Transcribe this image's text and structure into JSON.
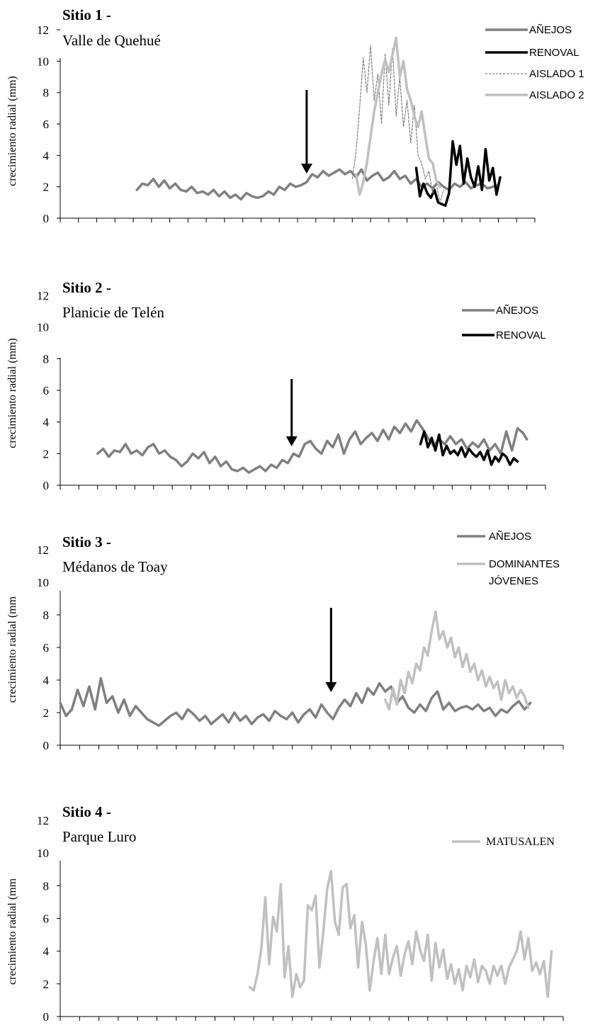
{
  "colors": {
    "anejos": "#808080",
    "renoval": "#000000",
    "aislado1": "#808080",
    "light": "#c0c0c0"
  },
  "chart_data": [
    {
      "type": "line",
      "title": "Sitio 1 -",
      "subtitle": "Valle de Quehué",
      "ylabel": "crecimiento radial (mm)",
      "ylim": [
        0,
        12
      ],
      "yticks": [
        0,
        2,
        4,
        6,
        8,
        10,
        12
      ],
      "xlim": [
        1750,
        2010
      ],
      "arrow_year": 1885,
      "series": [
        {
          "name": "AÑEJOS",
          "color": "#808080",
          "style": "solid",
          "x": [
            1792,
            1795,
            1798,
            1801,
            1804,
            1807,
            1810,
            1813,
            1816,
            1819,
            1822,
            1825,
            1828,
            1831,
            1834,
            1837,
            1840,
            1843,
            1846,
            1849,
            1852,
            1855,
            1858,
            1861,
            1864,
            1867,
            1870,
            1873,
            1876,
            1879,
            1882,
            1885,
            1888,
            1891,
            1894,
            1897,
            1900,
            1903,
            1906,
            1909,
            1912,
            1915,
            1918,
            1921,
            1924,
            1927,
            1930,
            1933,
            1936,
            1939,
            1942,
            1945,
            1948,
            1951,
            1954,
            1957,
            1960,
            1963,
            1966,
            1969,
            1972,
            1975,
            1978,
            1981,
            1984,
            1987,
            1990
          ],
          "y": [
            1.8,
            2.2,
            2.1,
            2.5,
            2.0,
            2.4,
            1.9,
            2.2,
            1.8,
            1.7,
            2.0,
            1.6,
            1.7,
            1.5,
            1.8,
            1.4,
            1.7,
            1.3,
            1.5,
            1.2,
            1.6,
            1.4,
            1.3,
            1.4,
            1.7,
            1.5,
            2.0,
            1.8,
            2.2,
            2.0,
            2.1,
            2.3,
            2.8,
            2.6,
            3.0,
            2.7,
            2.9,
            3.1,
            2.8,
            3.0,
            2.6,
            3.1,
            2.4,
            2.7,
            2.9,
            2.4,
            2.6,
            3.0,
            2.5,
            2.7,
            2.2,
            2.5,
            2.0,
            2.2,
            1.9,
            2.3,
            2.0,
            1.8,
            2.2,
            2.0,
            2.3,
            1.9,
            2.1,
            2.2,
            1.9,
            2.0,
            2.1
          ]
        },
        {
          "name": "RENOVAL",
          "color": "#000000",
          "style": "solid",
          "x": [
            1945,
            1947,
            1949,
            1951,
            1953,
            1955,
            1957,
            1959,
            1961,
            1963,
            1965,
            1967,
            1969,
            1971,
            1973,
            1975,
            1977,
            1979,
            1981,
            1983,
            1985,
            1987,
            1989,
            1991
          ],
          "y": [
            3.2,
            1.4,
            2.2,
            1.6,
            1.3,
            1.8,
            1.0,
            0.9,
            0.8,
            1.6,
            4.9,
            3.4,
            4.6,
            2.2,
            3.8,
            2.6,
            2.0,
            3.3,
            1.8,
            4.4,
            2.4,
            3.2,
            1.5,
            2.6
          ]
        },
        {
          "name": "AISLADO 1",
          "color": "#808080",
          "style": "dotted",
          "x": [
            1910,
            1912,
            1914,
            1916,
            1918,
            1920,
            1922,
            1924,
            1926,
            1928,
            1930,
            1932,
            1934,
            1936,
            1938,
            1940,
            1942,
            1944,
            1946,
            1948,
            1950,
            1952,
            1954,
            1956,
            1958,
            1960
          ],
          "y": [
            2.5,
            4.2,
            7.0,
            10.2,
            8.0,
            11.0,
            7.5,
            9.2,
            6.0,
            10.5,
            7.2,
            10.8,
            6.5,
            9.0,
            5.8,
            7.5,
            4.8,
            7.2,
            4.0,
            3.5,
            2.5,
            3.0,
            1.6,
            2.2,
            1.0,
            1.8
          ]
        },
        {
          "name": "AISLADO 2",
          "color": "#c0c0c0",
          "style": "solid",
          "x": [
            1912,
            1914,
            1916,
            1918,
            1920,
            1922,
            1924,
            1926,
            1928,
            1930,
            1932,
            1934,
            1936,
            1938,
            1940,
            1942,
            1944,
            1946,
            1948,
            1950,
            1952,
            1954,
            1956,
            1958
          ],
          "y": [
            2.8,
            1.5,
            2.3,
            3.5,
            5.2,
            6.8,
            8.0,
            9.2,
            10.1,
            9.3,
            10.4,
            11.5,
            9.0,
            10.0,
            8.2,
            7.5,
            6.5,
            5.8,
            6.8,
            5.2,
            3.8,
            3.5,
            2.4,
            2.0
          ]
        }
      ]
    },
    {
      "type": "line",
      "title": "Sitio 2 -",
      "subtitle": "Planicie de Telén",
      "ylabel": "crecimiento radial (mm)",
      "ylim": [
        0,
        12
      ],
      "yticks": [
        0,
        2,
        4,
        6,
        8,
        10,
        12
      ],
      "xlim": [
        1750,
        2010
      ],
      "arrow_year": 1874,
      "series": [
        {
          "name": "AÑEJOS",
          "color": "#808080",
          "style": "solid",
          "x": [
            1770,
            1773,
            1776,
            1779,
            1782,
            1785,
            1788,
            1791,
            1794,
            1797,
            1800,
            1803,
            1806,
            1809,
            1812,
            1815,
            1818,
            1821,
            1824,
            1827,
            1830,
            1833,
            1836,
            1839,
            1842,
            1845,
            1848,
            1851,
            1854,
            1857,
            1860,
            1863,
            1866,
            1869,
            1872,
            1875,
            1878,
            1881,
            1884,
            1887,
            1890,
            1893,
            1896,
            1899,
            1902,
            1905,
            1908,
            1911,
            1914,
            1917,
            1920,
            1923,
            1926,
            1929,
            1932,
            1935,
            1938,
            1941,
            1944,
            1947,
            1950,
            1953,
            1956,
            1959,
            1962,
            1965,
            1968,
            1971,
            1974,
            1977,
            1980,
            1983,
            1986,
            1989,
            1992,
            1995,
            1998,
            2000
          ],
          "y": [
            2.0,
            2.3,
            1.8,
            2.2,
            2.1,
            2.6,
            2.0,
            2.2,
            1.9,
            2.4,
            2.6,
            2.0,
            2.2,
            1.8,
            1.6,
            1.2,
            1.5,
            2.0,
            1.7,
            2.1,
            1.4,
            1.8,
            1.2,
            1.5,
            1.0,
            0.9,
            1.1,
            0.8,
            1.0,
            1.2,
            0.9,
            1.3,
            1.1,
            1.6,
            1.4,
            2.0,
            1.8,
            2.6,
            2.8,
            2.3,
            2.0,
            2.8,
            2.4,
            3.2,
            2.0,
            2.9,
            3.4,
            2.6,
            3.0,
            3.3,
            2.8,
            3.5,
            2.9,
            3.7,
            3.3,
            3.9,
            3.4,
            4.1,
            3.6,
            3.0,
            2.5,
            2.9,
            2.6,
            3.1,
            2.6,
            2.9,
            2.3,
            2.7,
            2.4,
            2.9,
            2.2,
            2.6,
            2.0,
            3.4,
            2.2,
            3.6,
            3.3,
            2.9
          ]
        },
        {
          "name": "RENOVAL",
          "color": "#000000",
          "style": "solid",
          "x": [
            1943,
            1945,
            1947,
            1949,
            1951,
            1953,
            1955,
            1957,
            1959,
            1961,
            1963,
            1965,
            1967,
            1969,
            1971,
            1973,
            1975,
            1977,
            1979,
            1981,
            1983,
            1985,
            1987,
            1989,
            1991,
            1993,
            1995
          ],
          "y": [
            2.6,
            3.4,
            2.4,
            3.0,
            2.2,
            3.2,
            1.9,
            2.5,
            2.0,
            2.2,
            1.9,
            2.4,
            1.8,
            2.3,
            2.0,
            1.8,
            2.1,
            1.6,
            2.2,
            1.3,
            1.8,
            1.5,
            2.0,
            1.8,
            1.3,
            1.7,
            1.5
          ]
        }
      ]
    },
    {
      "type": "line",
      "title": "Sitio 3 -",
      "subtitle": "Médanos de Toay",
      "ylabel": "crecimiento radial (mm",
      "ylim": [
        0,
        10
      ],
      "yticks": [
        0,
        2,
        4,
        6,
        8,
        10
      ],
      "ytick_top_label": "12",
      "xlim": [
        1750,
        2010
      ],
      "arrow_year": 1890,
      "series": [
        {
          "name": "AÑEJOS",
          "color": "#808080",
          "style": "solid",
          "x": [
            1750,
            1753,
            1756,
            1759,
            1762,
            1765,
            1768,
            1771,
            1774,
            1777,
            1780,
            1783,
            1786,
            1789,
            1792,
            1795,
            1798,
            1801,
            1804,
            1807,
            1810,
            1813,
            1816,
            1819,
            1822,
            1825,
            1828,
            1831,
            1834,
            1837,
            1840,
            1843,
            1846,
            1849,
            1852,
            1855,
            1858,
            1861,
            1864,
            1867,
            1870,
            1873,
            1876,
            1879,
            1882,
            1885,
            1888,
            1891,
            1894,
            1897,
            1900,
            1903,
            1906,
            1909,
            1912,
            1915,
            1918,
            1921,
            1924,
            1927,
            1930,
            1933,
            1936,
            1939,
            1942,
            1945,
            1948,
            1951,
            1954,
            1957,
            1960,
            1963,
            1966,
            1969,
            1972,
            1975,
            1978,
            1981,
            1984,
            1987,
            1990,
            1993
          ],
          "y": [
            2.6,
            1.8,
            2.2,
            3.4,
            2.4,
            3.6,
            2.2,
            4.1,
            2.6,
            3.0,
            2.0,
            2.8,
            1.8,
            2.4,
            2.0,
            1.6,
            1.4,
            1.2,
            1.5,
            1.8,
            2.0,
            1.6,
            2.2,
            1.9,
            1.5,
            1.8,
            1.3,
            1.6,
            1.9,
            1.4,
            2.0,
            1.5,
            1.8,
            1.3,
            1.7,
            1.9,
            1.5,
            2.1,
            1.8,
            1.6,
            2.0,
            1.4,
            1.9,
            2.2,
            1.7,
            2.5,
            2.0,
            1.6,
            2.3,
            2.8,
            2.4,
            3.2,
            2.6,
            3.5,
            3.1,
            3.8,
            3.3,
            3.6,
            2.6,
            3.0,
            2.3,
            2.0,
            2.5,
            2.1,
            2.9,
            3.3,
            2.2,
            2.6,
            2.1,
            2.3,
            2.4,
            2.2,
            2.5,
            2.1,
            2.3,
            1.8,
            2.2,
            2.0,
            2.4,
            2.7,
            2.2,
            2.6
          ]
        },
        {
          "name": "DOMINANTES JÓVENES",
          "color": "#c0c0c0",
          "style": "solid",
          "x": [
            1918,
            1920,
            1922,
            1924,
            1926,
            1928,
            1930,
            1932,
            1934,
            1936,
            1938,
            1940,
            1942,
            1944,
            1946,
            1948,
            1950,
            1952,
            1954,
            1956,
            1958,
            1960,
            1962,
            1964,
            1966,
            1968,
            1970,
            1972,
            1974,
            1976,
            1978,
            1980,
            1982,
            1984,
            1986,
            1988,
            1990,
            1992
          ],
          "y": [
            2.8,
            2.2,
            3.5,
            2.5,
            4.0,
            3.2,
            4.5,
            3.8,
            5.0,
            4.6,
            6.0,
            5.5,
            7.0,
            8.2,
            6.5,
            7.0,
            6.0,
            6.6,
            5.4,
            6.0,
            4.8,
            5.6,
            4.5,
            5.0,
            4.0,
            4.6,
            3.6,
            4.2,
            3.5,
            3.9,
            2.8,
            4.0,
            3.2,
            3.6,
            2.9,
            3.4,
            3.0,
            2.3
          ]
        }
      ]
    },
    {
      "type": "line",
      "title": "Sitio 4 -",
      "subtitle": "Parque Luro",
      "ylabel": "crecimiento radial (mm",
      "ylim": [
        0,
        10
      ],
      "yticks": [
        0,
        2,
        4,
        6,
        8,
        10
      ],
      "ytick_top_label": "12",
      "xlim": [
        1750,
        2010
      ],
      "xticks": [
        1750,
        1770,
        1790,
        1810,
        1830,
        1850,
        1870,
        1890,
        1910,
        1930,
        1950,
        1970,
        1990,
        2010
      ],
      "series": [
        {
          "name": "MATUSALEN",
          "color": "#c0c0c0",
          "style": "solid",
          "x": [
            1848,
            1850,
            1852,
            1854,
            1856,
            1858,
            1860,
            1862,
            1864,
            1866,
            1868,
            1870,
            1872,
            1874,
            1876,
            1878,
            1880,
            1882,
            1884,
            1886,
            1888,
            1890,
            1892,
            1894,
            1896,
            1898,
            1900,
            1902,
            1904,
            1906,
            1908,
            1910,
            1912,
            1914,
            1916,
            1918,
            1920,
            1922,
            1924,
            1926,
            1928,
            1930,
            1932,
            1934,
            1936,
            1938,
            1940,
            1942,
            1944,
            1946,
            1948,
            1950,
            1952,
            1954,
            1956,
            1958,
            1960,
            1962,
            1964,
            1966,
            1968,
            1970,
            1972,
            1974,
            1976,
            1978,
            1980,
            1982,
            1984,
            1986,
            1988,
            1990,
            1992,
            1994,
            1996,
            1998,
            2000,
            2002,
            2004
          ],
          "y": [
            1.8,
            1.6,
            2.6,
            4.2,
            7.3,
            3.2,
            6.1,
            5.2,
            8.1,
            2.4,
            4.3,
            1.2,
            2.6,
            1.8,
            2.2,
            6.8,
            6.5,
            7.4,
            3.0,
            5.2,
            7.8,
            8.9,
            5.8,
            5.0,
            7.9,
            8.1,
            5.4,
            6.2,
            3.0,
            5.8,
            4.4,
            1.6,
            3.4,
            4.8,
            2.6,
            5.0,
            2.6,
            3.6,
            4.3,
            2.5,
            3.8,
            4.6,
            3.2,
            5.2,
            4.1,
            3.4,
            5.0,
            2.2,
            4.5,
            3.0,
            4.1,
            2.3,
            3.2,
            2.0,
            2.9,
            1.6,
            3.1,
            2.4,
            3.5,
            2.1,
            3.1,
            2.8,
            2.0,
            3.1,
            2.5,
            3.1,
            2.0,
            3.0,
            3.5,
            4.0,
            5.2,
            3.5,
            4.8,
            2.8,
            3.3,
            2.6,
            3.4,
            1.2,
            4.0
          ]
        }
      ]
    }
  ],
  "legends": [
    [
      {
        "label": "AÑEJOS",
        "series": 0
      },
      {
        "label": "RENOVAL",
        "series": 1
      },
      {
        "label": "AISLADO 1",
        "series": 2
      },
      {
        "label": "AISLADO 2",
        "series": 3
      }
    ],
    [
      {
        "label": "AÑEJOS",
        "series": 0
      },
      {
        "label": "RENOVAL",
        "series": 1
      }
    ],
    [
      {
        "label": "AÑEJOS",
        "series": 0
      },
      {
        "label": "DOMINANTES",
        "label2": "JÓVENES",
        "series": 1
      }
    ],
    [
      {
        "label": "MATUSALEN",
        "series": 0
      }
    ]
  ]
}
